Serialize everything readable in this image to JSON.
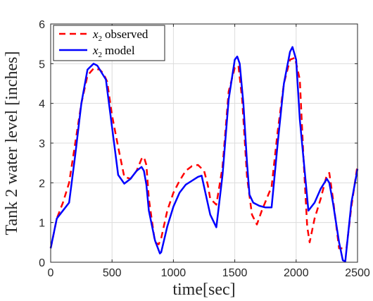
{
  "chart_data": {
    "type": "line",
    "xlabel": "time[sec]",
    "ylabel": "Tank 2 water level [inches]",
    "xlim": [
      0,
      2500
    ],
    "ylim": [
      0,
      6
    ],
    "xticks": [
      0,
      500,
      1000,
      1500,
      2000,
      2500
    ],
    "yticks": [
      0,
      1,
      2,
      3,
      4,
      5,
      6
    ],
    "grid": true,
    "legend_position": "top-left",
    "series": [
      {
        "name": "x2 observed",
        "legend_var": "x",
        "legend_sub": "2",
        "legend_rest": "observed",
        "color": "#ff0000",
        "style": "dashed",
        "x": [
          0,
          50,
          100,
          150,
          200,
          250,
          300,
          350,
          400,
          430,
          460,
          500,
          550,
          600,
          650,
          700,
          740,
          760,
          780,
          800,
          850,
          880,
          900,
          950,
          1000,
          1050,
          1100,
          1150,
          1200,
          1250,
          1280,
          1300,
          1350,
          1400,
          1450,
          1500,
          1530,
          1560,
          1600,
          1640,
          1680,
          1720,
          1780,
          1800,
          1850,
          1900,
          1950,
          1990,
          2030,
          2060,
          2090,
          2110,
          2150,
          2200,
          2250,
          2270,
          2300,
          2350,
          2410,
          2450,
          2500
        ],
        "y": [
          0.35,
          1.1,
          1.5,
          2.0,
          3.0,
          4.0,
          4.7,
          4.88,
          4.85,
          4.75,
          4.55,
          3.7,
          2.9,
          2.15,
          2.1,
          2.3,
          2.6,
          2.65,
          2.45,
          1.6,
          0.5,
          0.45,
          0.6,
          1.3,
          1.75,
          2.05,
          2.3,
          2.42,
          2.45,
          2.3,
          1.95,
          1.6,
          1.45,
          2.4,
          4.3,
          4.9,
          4.95,
          4.1,
          2.15,
          1.2,
          0.95,
          1.3,
          1.75,
          1.9,
          3.3,
          4.5,
          5.1,
          5.15,
          4.6,
          2.6,
          0.9,
          0.5,
          1.1,
          1.6,
          2.2,
          2.25,
          1.6,
          0.35,
          0.35,
          1.4,
          2.45
        ]
      },
      {
        "name": "x2 model",
        "legend_var": "x",
        "legend_sub": "2",
        "legend_rest": "model",
        "color": "#0000ff",
        "style": "solid",
        "x": [
          0,
          50,
          100,
          150,
          200,
          250,
          300,
          350,
          380,
          420,
          450,
          500,
          550,
          600,
          650,
          700,
          740,
          760,
          780,
          800,
          850,
          890,
          900,
          950,
          1000,
          1050,
          1100,
          1150,
          1200,
          1230,
          1250,
          1300,
          1350,
          1400,
          1450,
          1500,
          1520,
          1540,
          1570,
          1600,
          1620,
          1650,
          1700,
          1750,
          1800,
          1850,
          1900,
          1950,
          1970,
          2000,
          2030,
          2060,
          2100,
          2150,
          2200,
          2250,
          2270,
          2300,
          2350,
          2380,
          2400,
          2450,
          2500
        ],
        "y": [
          0.35,
          1.1,
          1.3,
          1.5,
          2.7,
          4.0,
          4.85,
          5.0,
          4.95,
          4.75,
          4.6,
          3.4,
          2.2,
          1.98,
          2.1,
          2.3,
          2.4,
          2.3,
          1.95,
          1.3,
          0.55,
          0.22,
          0.25,
          0.9,
          1.4,
          1.75,
          1.95,
          2.05,
          2.15,
          2.18,
          1.9,
          1.2,
          0.88,
          2.2,
          4.1,
          5.1,
          5.18,
          5.0,
          4.0,
          2.5,
          1.7,
          1.5,
          1.42,
          1.38,
          1.38,
          3.0,
          4.5,
          5.3,
          5.42,
          5.1,
          3.6,
          2.6,
          1.3,
          1.5,
          1.85,
          2.1,
          2.0,
          1.5,
          0.5,
          0.05,
          0.02,
          1.5,
          2.35
        ]
      }
    ]
  }
}
